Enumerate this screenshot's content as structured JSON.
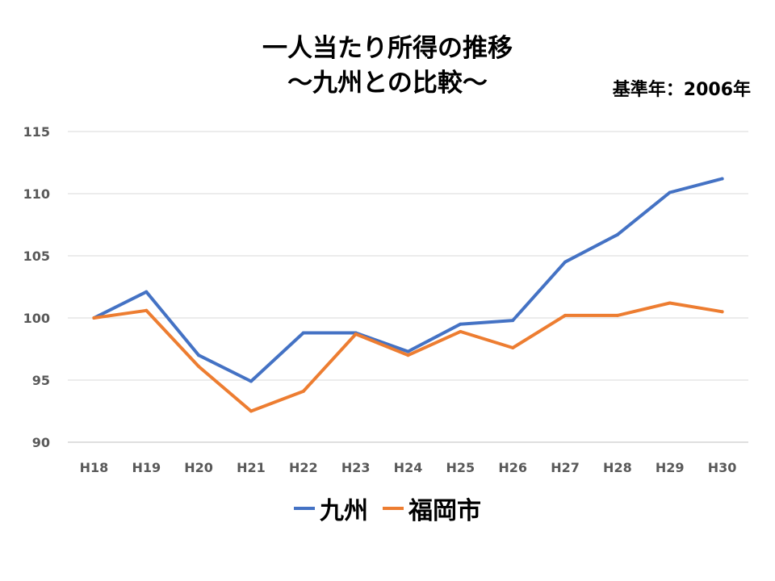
{
  "chart_data": {
    "type": "line",
    "title": "一人当たり所得の推移",
    "subtitle": "～九州との比較～",
    "note": "基準年：2006年",
    "categories": [
      "H18",
      "H19",
      "H20",
      "H21",
      "H22",
      "H23",
      "H24",
      "H25",
      "H26",
      "H27",
      "H28",
      "H29",
      "H30"
    ],
    "ylim": [
      90,
      115
    ],
    "yticks": [
      90,
      95,
      100,
      105,
      110,
      115
    ],
    "grid": true,
    "legend_position": "bottom",
    "series": [
      {
        "name": "九州",
        "color": "#4472C4",
        "values": [
          100.0,
          102.1,
          97.0,
          94.9,
          98.8,
          98.8,
          97.3,
          99.5,
          99.8,
          104.5,
          106.7,
          110.1,
          111.2
        ]
      },
      {
        "name": "福岡市",
        "color": "#ED7D31",
        "values": [
          100.0,
          100.6,
          96.1,
          92.5,
          94.1,
          98.7,
          97.0,
          98.9,
          97.6,
          100.2,
          100.2,
          101.2,
          100.5
        ]
      }
    ]
  }
}
